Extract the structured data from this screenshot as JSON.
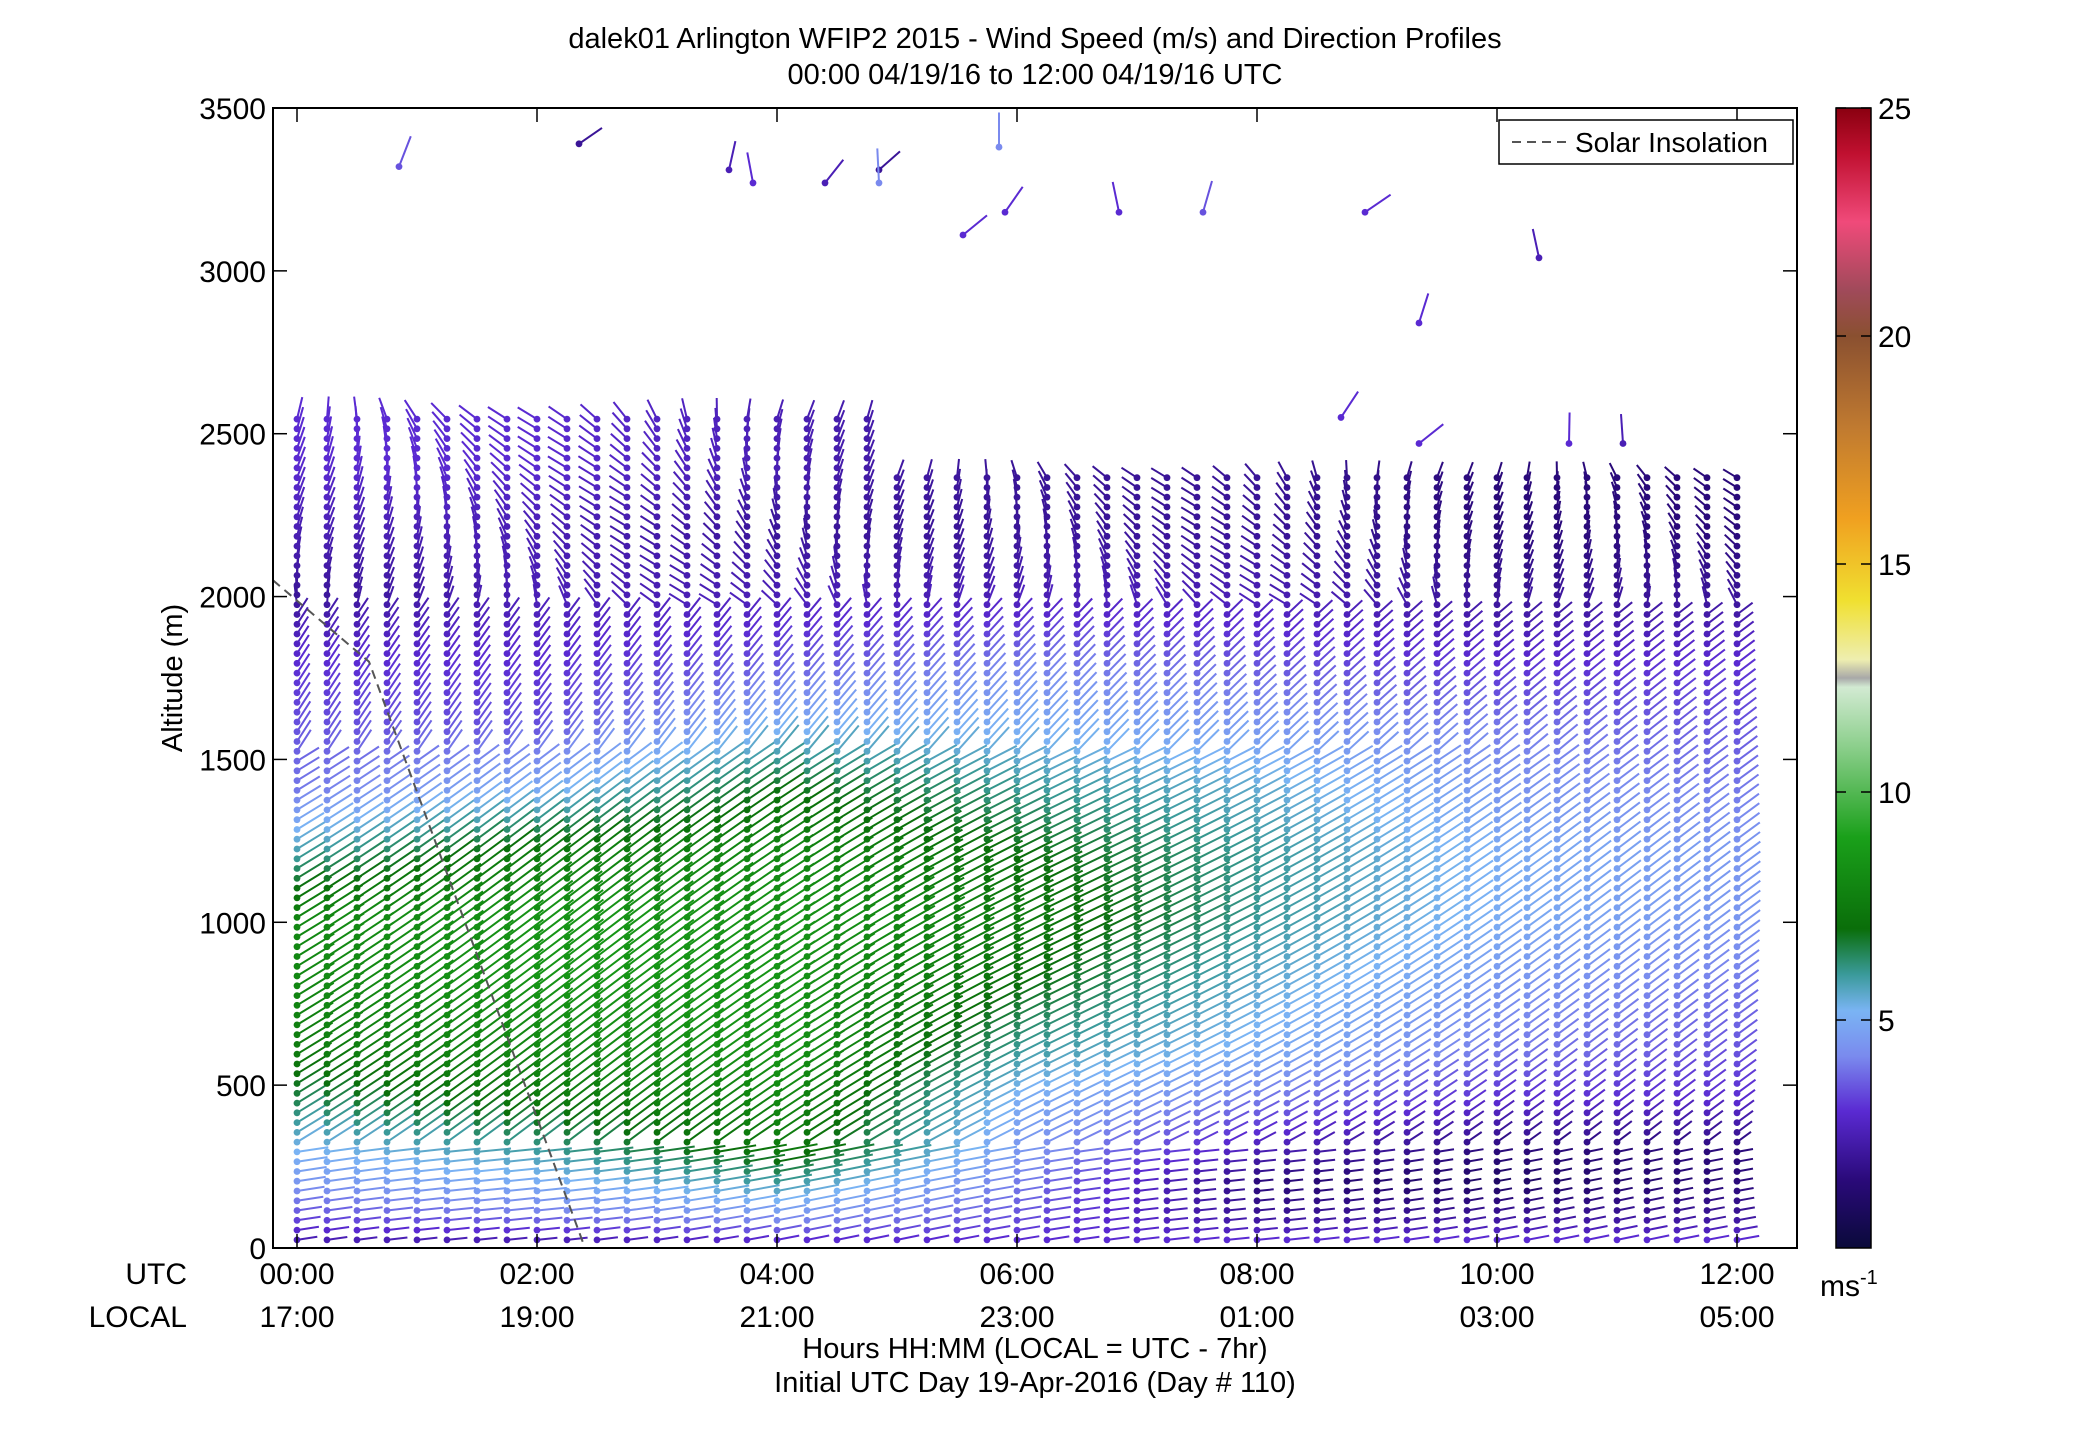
{
  "chart_data": {
    "type": "scatter",
    "title": "dalek01 Arlington WFIP2 2015 - Wind Speed (m/s) and Direction Profiles",
    "subtitle": "00:00 04/19/16 to 12:00 04/19/16  UTC",
    "ylabel": "Altitude (m)",
    "xlabel": "Hours HH:MM  (LOCAL = UTC - 7hr)",
    "xlabel2": "Initial UTC Day 19-Apr-2016 (Day # 110)",
    "x_axis_row_utc": "UTC",
    "x_axis_row_local": "LOCAL",
    "xlim": [
      -0.2,
      12.5
    ],
    "ylim": [
      0,
      3500
    ],
    "y_ticks": [
      0,
      500,
      1000,
      1500,
      2000,
      2500,
      3000,
      3500
    ],
    "x_ticks_hours": [
      0,
      2,
      4,
      6,
      8,
      10,
      12
    ],
    "x_ticks_utc": [
      "00:00",
      "02:00",
      "04:00",
      "06:00",
      "08:00",
      "10:00",
      "12:00"
    ],
    "x_ticks_local": [
      "17:00",
      "19:00",
      "21:00",
      "23:00",
      "01:00",
      "03:00",
      "05:00"
    ],
    "legend": {
      "entry": "Solar Insolation",
      "placement": "top-right"
    },
    "solar_insolation": {
      "x": [
        -0.2,
        0.6,
        1.2,
        1.7,
        2.1,
        2.4
      ],
      "y": [
        2050,
        1800,
        1200,
        700,
        300,
        0
      ]
    },
    "colorbar": {
      "min": 0,
      "max": 25,
      "ticks": [
        5,
        10,
        15,
        20,
        25
      ],
      "unit": "ms",
      "unit_exponent": "-1",
      "stops": [
        {
          "v": 0,
          "c": "#0a0a3a"
        },
        {
          "v": 1.5,
          "c": "#2a0a7a"
        },
        {
          "v": 3.0,
          "c": "#5a2ad2"
        },
        {
          "v": 4.2,
          "c": "#7a8aee"
        },
        {
          "v": 5.2,
          "c": "#7ab4f4"
        },
        {
          "v": 6.0,
          "c": "#3a9a9a"
        },
        {
          "v": 7.0,
          "c": "#0a6e0a"
        },
        {
          "v": 9.0,
          "c": "#1aa01a"
        },
        {
          "v": 11.0,
          "c": "#8ccf8c"
        },
        {
          "v": 12.3,
          "c": "#d2ead2"
        },
        {
          "v": 12.5,
          "c": "#a8a8a8"
        },
        {
          "v": 12.9,
          "c": "#eeeeb0"
        },
        {
          "v": 14.2,
          "c": "#f0e030"
        },
        {
          "v": 16.0,
          "c": "#f0a020"
        },
        {
          "v": 18.0,
          "c": "#c07a30"
        },
        {
          "v": 20.0,
          "c": "#8a5030"
        },
        {
          "v": 21.0,
          "c": "#a04a5a"
        },
        {
          "v": 22.5,
          "c": "#f04a7a"
        },
        {
          "v": 24.0,
          "c": "#c01030"
        },
        {
          "v": 25.0,
          "c": "#8a0010"
        }
      ]
    },
    "sample_profile_times_hours": [
      0.0,
      0.25,
      0.5,
      0.75,
      1.0,
      1.25,
      1.5,
      1.75,
      2.0,
      2.25,
      2.5,
      2.75,
      3.0,
      3.25,
      3.5,
      3.75,
      4.0,
      4.25,
      4.5,
      4.75,
      5.0,
      5.25,
      5.5,
      5.75,
      6.0,
      6.25,
      6.5,
      6.75,
      7.0,
      7.25,
      7.5,
      7.75,
      8.0,
      8.25,
      8.5,
      8.75,
      9.0,
      9.25,
      9.5,
      9.75,
      10.0,
      10.25,
      10.5,
      10.75,
      11.0,
      11.25,
      11.5,
      11.75,
      12.0
    ],
    "sample_altitudes_m": [
      25,
      100,
      200,
      300,
      450,
      600,
      800,
      1000,
      1200,
      1400,
      1600,
      1800,
      2000,
      2200,
      2400
    ],
    "wind_speed_ms_profiles": {
      "00:00": [
        2.5,
        3.5,
        4.5,
        5.2,
        6.5,
        7.5,
        8.0,
        8.0,
        6.0,
        4.0,
        3.5,
        3.0,
        2.0,
        2.5,
        3.0
      ],
      "02:00": [
        2.5,
        4.0,
        5.0,
        6.0,
        7.5,
        8.0,
        8.5,
        8.5,
        7.5,
        5.0,
        3.5,
        3.0,
        2.5,
        2.5,
        3.0
      ],
      "04:00": [
        3.0,
        4.5,
        6.0,
        7.5,
        8.0,
        8.5,
        8.5,
        8.5,
        8.0,
        7.0,
        5.0,
        3.5,
        2.5,
        2.0,
        2.5
      ],
      "06:00": [
        3.0,
        3.5,
        4.0,
        4.5,
        5.0,
        6.0,
        7.0,
        7.5,
        7.0,
        6.0,
        5.0,
        4.0,
        2.5,
        2.0,
        2.0
      ],
      "08:00": [
        3.0,
        2.0,
        1.5,
        2.5,
        4.0,
        5.0,
        5.5,
        6.0,
        6.0,
        5.5,
        4.5,
        3.5,
        2.5,
        2.0,
        2.0
      ],
      "10:00": [
        3.0,
        2.0,
        1.0,
        1.5,
        3.0,
        4.0,
        4.5,
        5.0,
        5.0,
        4.5,
        4.0,
        3.0,
        2.0,
        1.5,
        1.5
      ],
      "12:00": [
        3.0,
        2.0,
        1.5,
        1.5,
        3.0,
        3.5,
        4.0,
        4.5,
        4.5,
        4.0,
        3.5,
        3.0,
        2.0,
        1.5,
        1.5
      ]
    },
    "upper_points": [
      {
        "t": 0.85,
        "z": 3320,
        "ws": 3.5
      },
      {
        "t": 2.35,
        "z": 3390,
        "ws": 2.0
      },
      {
        "t": 3.6,
        "z": 3310,
        "ws": 2.5
      },
      {
        "t": 3.8,
        "z": 3270,
        "ws": 3.0
      },
      {
        "t": 4.4,
        "z": 3270,
        "ws": 2.5
      },
      {
        "t": 4.85,
        "z": 3310,
        "ws": 2.0
      },
      {
        "t": 4.85,
        "z": 3270,
        "ws": 4.2
      },
      {
        "t": 5.85,
        "z": 3380,
        "ws": 4.2
      },
      {
        "t": 5.55,
        "z": 3110,
        "ws": 3.0
      },
      {
        "t": 5.9,
        "z": 3180,
        "ws": 3.0
      },
      {
        "t": 6.85,
        "z": 3180,
        "ws": 3.0
      },
      {
        "t": 7.55,
        "z": 3180,
        "ws": 3.5
      },
      {
        "t": 8.9,
        "z": 3180,
        "ws": 3.0
      },
      {
        "t": 9.35,
        "z": 2840,
        "ws": 3.0
      },
      {
        "t": 10.35,
        "z": 3040,
        "ws": 2.5
      },
      {
        "t": 8.7,
        "z": 2550,
        "ws": 3.0
      },
      {
        "t": 9.35,
        "z": 2470,
        "ws": 3.0
      },
      {
        "t": 10.6,
        "z": 2470,
        "ws": 3.0
      },
      {
        "t": 11.05,
        "z": 2470,
        "ws": 2.5
      }
    ]
  }
}
